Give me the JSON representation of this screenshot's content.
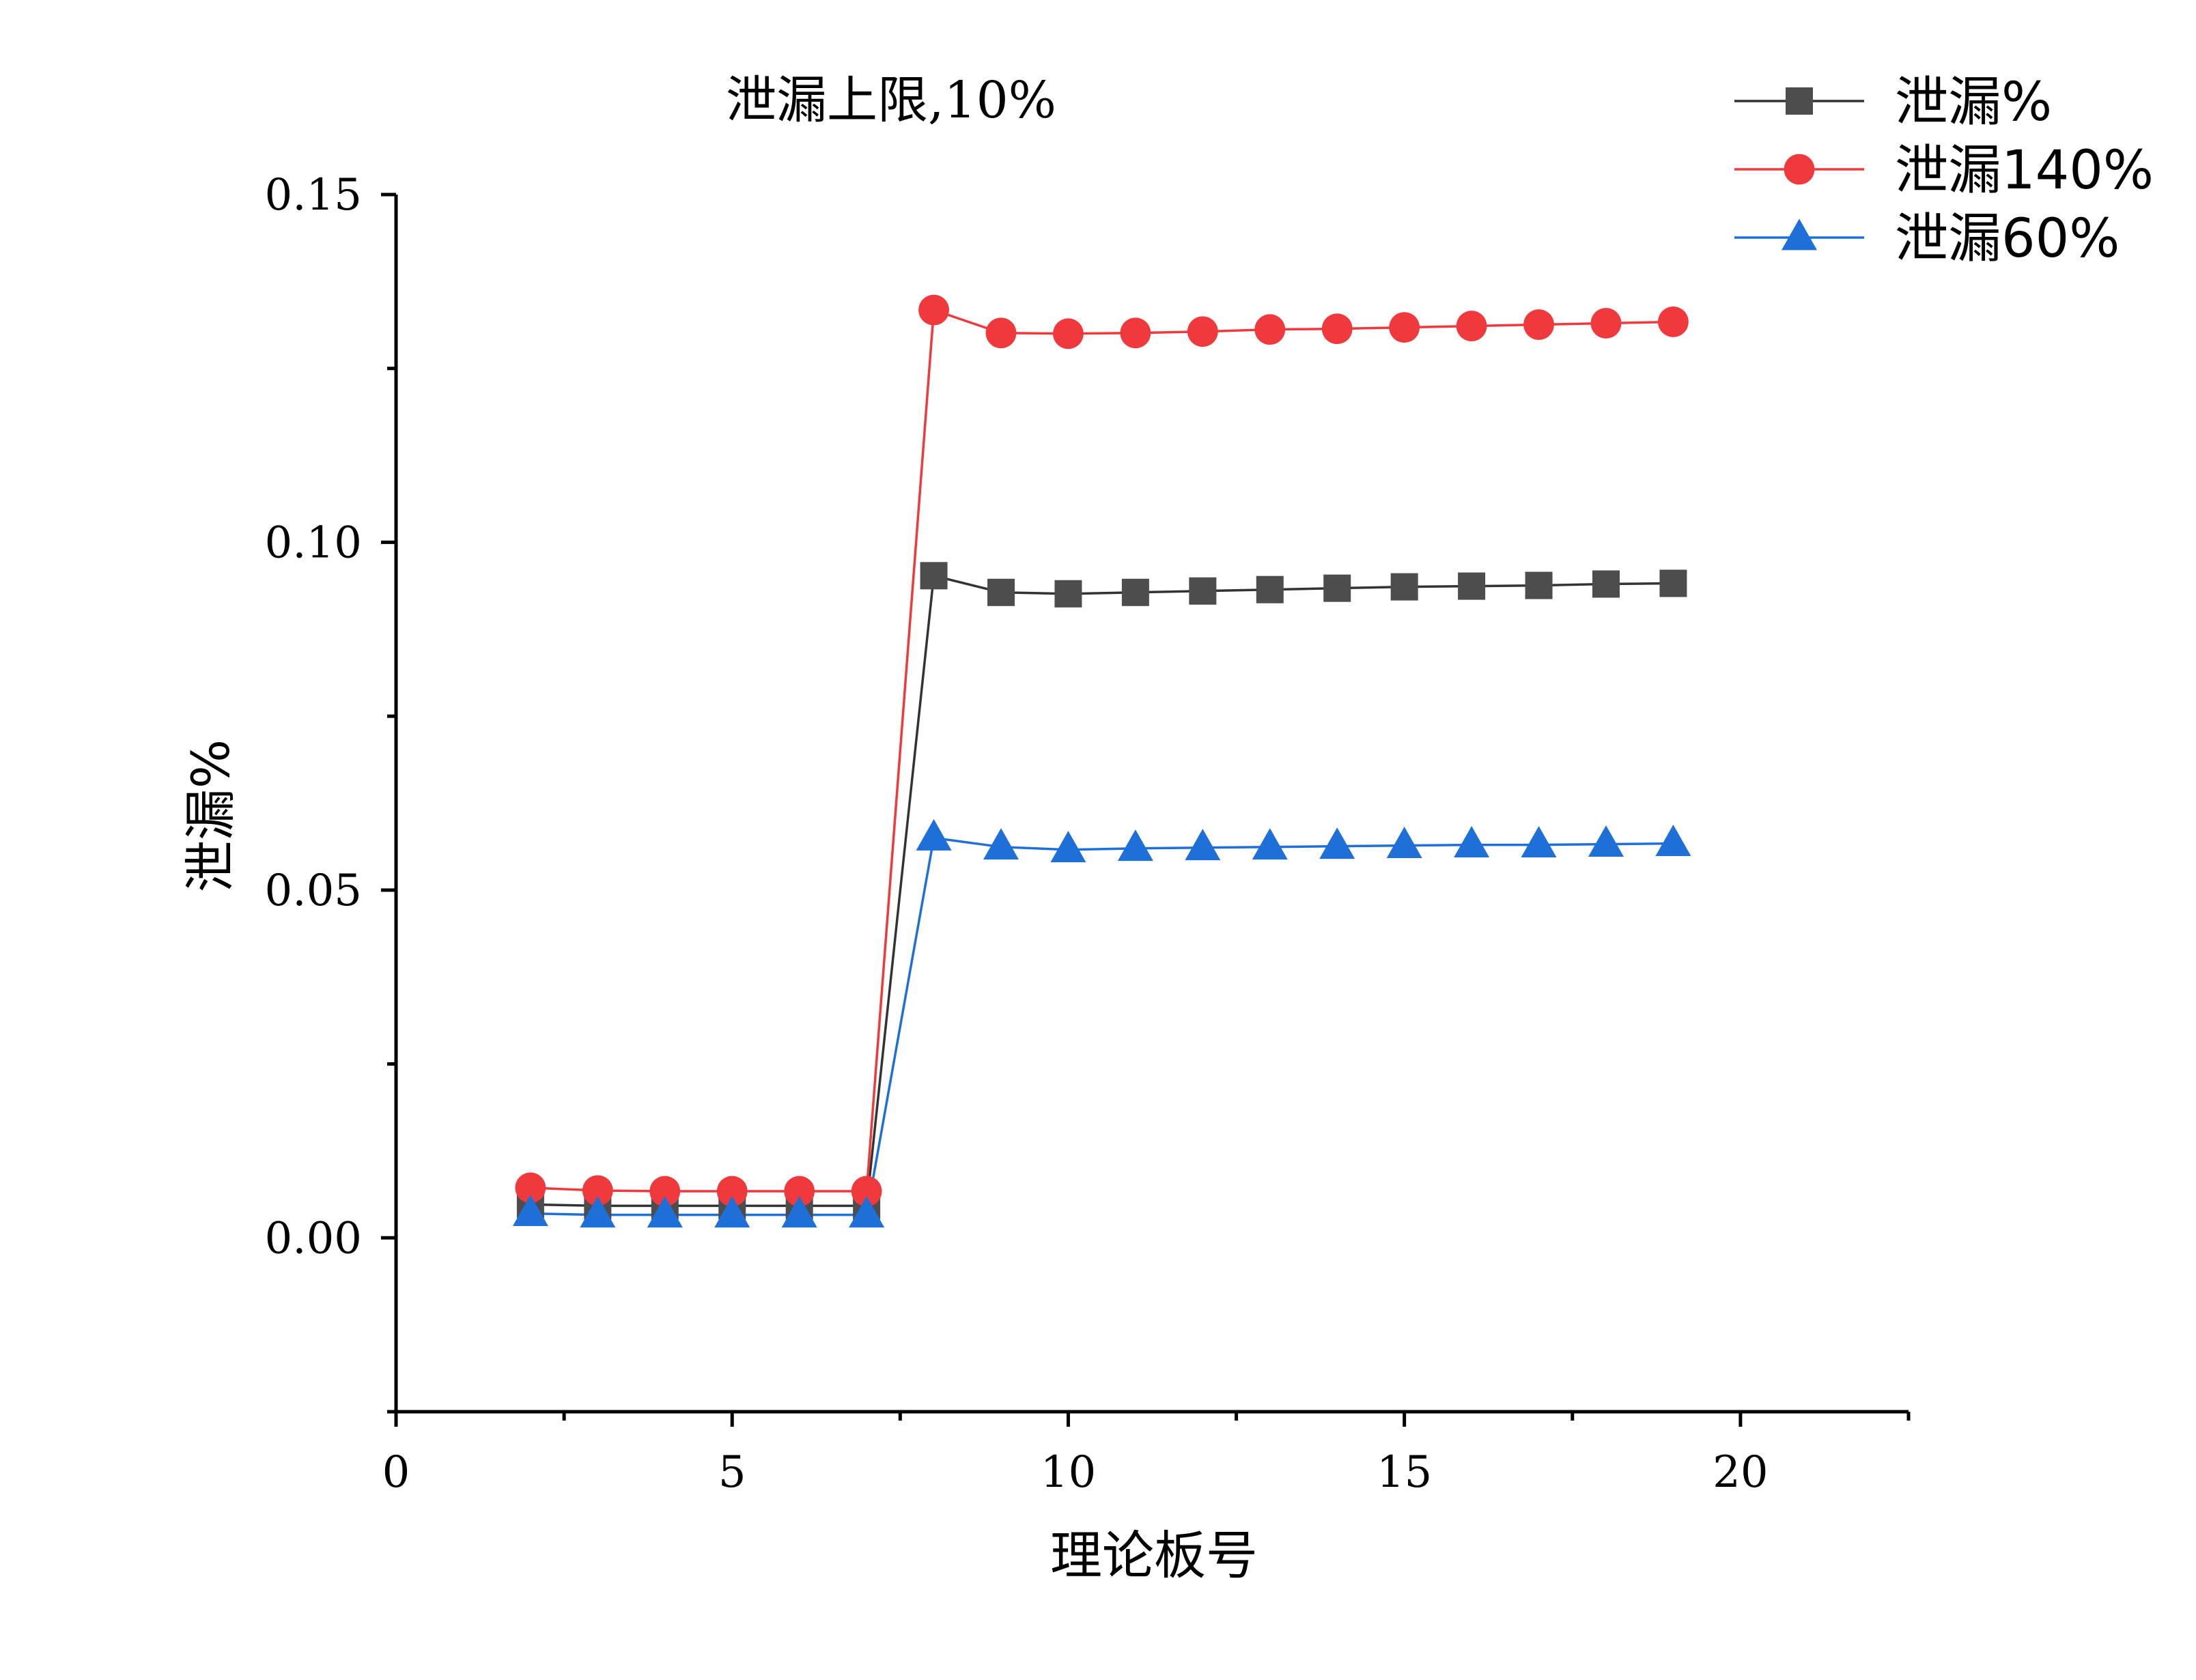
{
  "chart_data": {
    "type": "line",
    "title": "泄漏上限,10%",
    "xlabel": "理论板号",
    "ylabel": "泄漏%",
    "xlim": [
      0,
      22.5
    ],
    "ylim": [
      -0.025,
      0.15
    ],
    "x_major_ticks": [
      0,
      5,
      10,
      15,
      20
    ],
    "x_tick_labels": [
      "0",
      "5",
      "10",
      "15",
      "20"
    ],
    "x_minor_ticks": [
      2.5,
      7.5,
      12.5,
      17.5
    ],
    "y_major_ticks": [
      0.0,
      0.05,
      0.1,
      0.15
    ],
    "y_tick_labels": [
      "0.00",
      "0.05",
      "0.10",
      "0.15"
    ],
    "y_minor_ticks": [
      -0.025,
      0.025,
      0.075,
      0.125
    ],
    "grid": false,
    "legend_position": "top-right",
    "x": [
      2,
      3,
      4,
      5,
      6,
      7,
      8,
      9,
      10,
      11,
      12,
      13,
      14,
      15,
      16,
      17,
      18,
      19
    ],
    "series": [
      {
        "name": "泄漏%",
        "color": "#4d4d4d",
        "line_color": "#333333",
        "marker": "square",
        "values": [
          0.0048,
          0.0046,
          0.0046,
          0.0046,
          0.0046,
          0.0046,
          0.0952,
          0.0928,
          0.0926,
          0.0928,
          0.093,
          0.0932,
          0.0934,
          0.0936,
          0.0937,
          0.0938,
          0.094,
          0.0941
        ]
      },
      {
        "name": "泄漏140%",
        "color": "#f0393c",
        "line_color": "#f0393c",
        "marker": "circle",
        "values": [
          0.0072,
          0.0068,
          0.0067,
          0.0067,
          0.0067,
          0.0067,
          0.1334,
          0.1301,
          0.13,
          0.1301,
          0.1303,
          0.1306,
          0.1307,
          0.1309,
          0.1311,
          0.1313,
          0.1315,
          0.1317
        ]
      },
      {
        "name": "泄漏60%",
        "color": "#1f6fd9",
        "line_color": "#1f6fd9",
        "marker": "triangle",
        "values": [
          0.0035,
          0.0033,
          0.0033,
          0.0033,
          0.0033,
          0.0033,
          0.0575,
          0.0562,
          0.0558,
          0.056,
          0.0561,
          0.0562,
          0.0563,
          0.0564,
          0.0565,
          0.0565,
          0.0566,
          0.0567
        ]
      }
    ]
  }
}
